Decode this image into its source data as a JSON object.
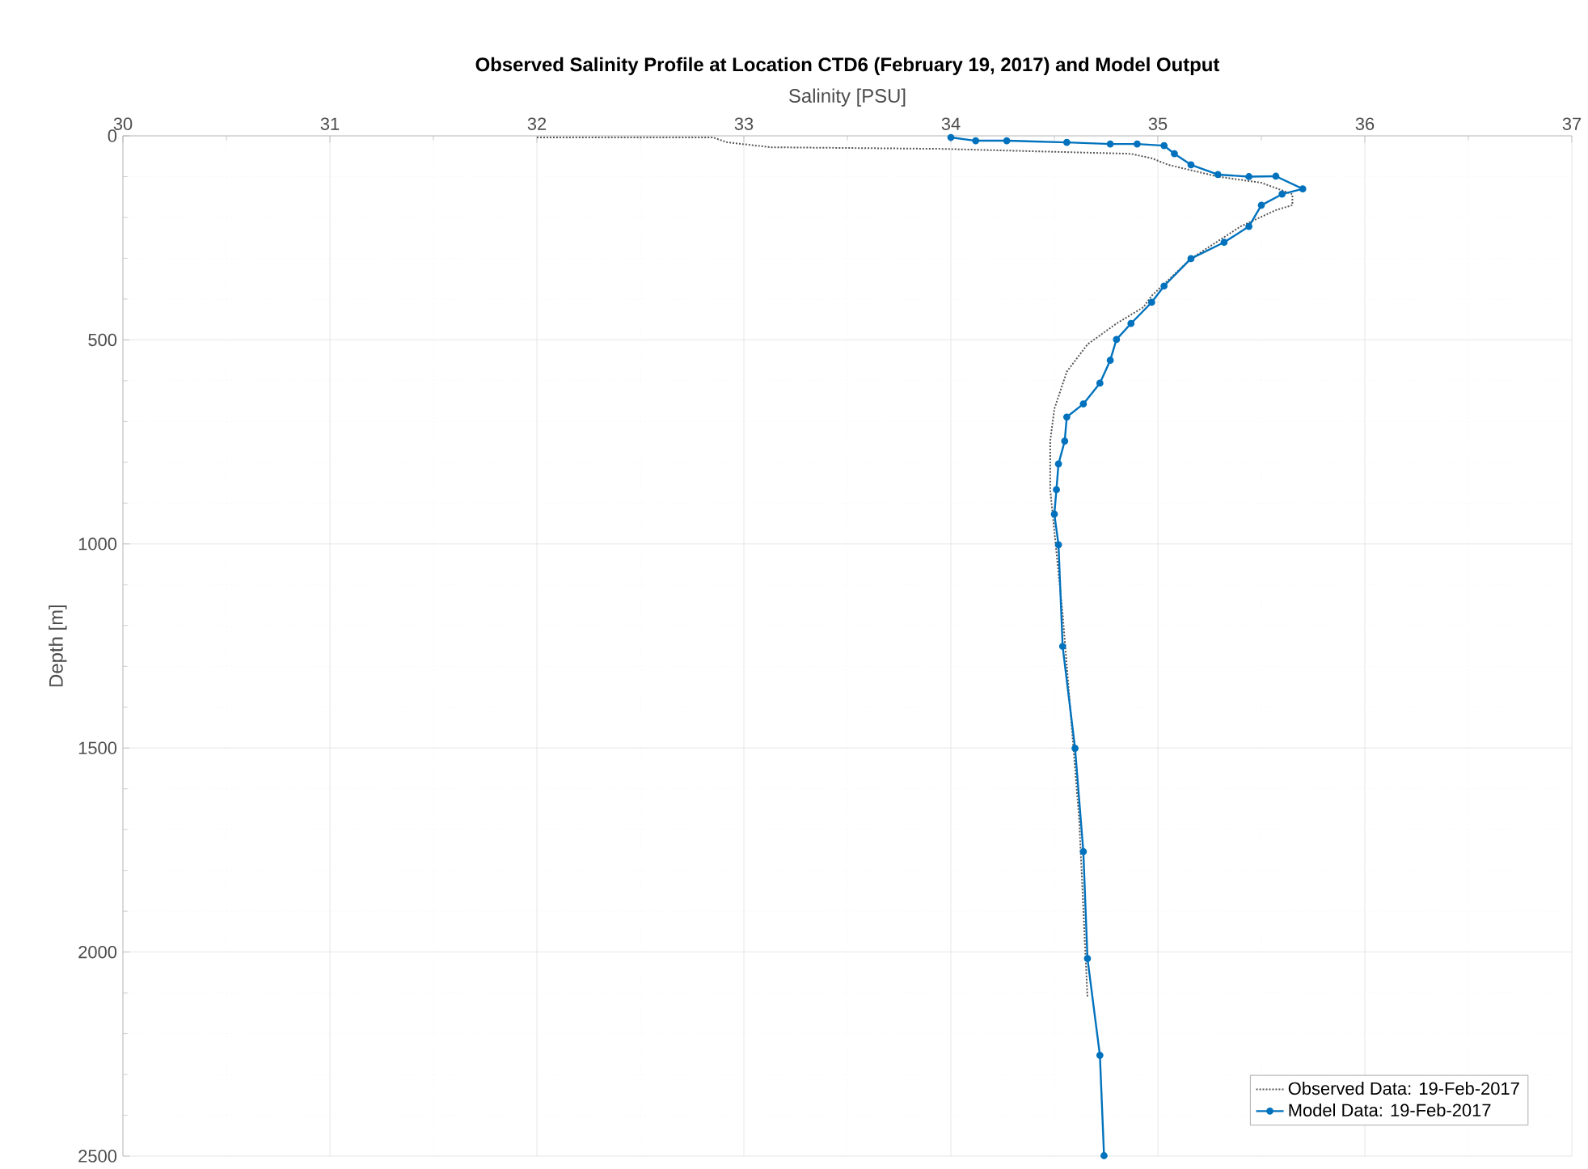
{
  "chart_data": {
    "type": "line",
    "title": "Observed Salinity Profile at Location CTD6 (February 19, 2017) and Model Output",
    "xlabel": "Salinity [PSU]",
    "ylabel": "Depth [m]",
    "xlim": [
      30,
      37
    ],
    "xticks": [
      30,
      31,
      32,
      33,
      34,
      35,
      36,
      37
    ],
    "ylim": [
      2500,
      0
    ],
    "yticks": [
      0,
      500,
      1000,
      1500,
      2000,
      2500
    ],
    "grid": true,
    "legend": "bottom right",
    "series": [
      {
        "name": "Observed Data: 19-Feb-2017",
        "color": "#555555",
        "line_style": "dotted",
        "marker": "none",
        "x": [
          32.0,
          32.85,
          32.92,
          33.13,
          33.96,
          34.87,
          34.97,
          35.05,
          35.29,
          35.5,
          35.65,
          35.65,
          35.57,
          35.4,
          35.16,
          34.97,
          34.93,
          34.8,
          34.66,
          34.56,
          34.5,
          34.48,
          34.48,
          34.54,
          34.62,
          34.66
        ],
        "values": [
          4,
          4,
          16,
          28,
          32,
          44,
          55,
          71,
          100,
          115,
          143,
          170,
          182,
          222,
          301,
          392,
          420,
          460,
          511,
          578,
          669,
          748,
          867,
          1172,
          1675,
          2111
        ]
      },
      {
        "name": "Model Data: 19-Feb-2017",
        "color": "#0072bd",
        "line_style": "solid",
        "marker": "circle",
        "x": [
          34.0,
          34.12,
          34.27,
          34.56,
          34.77,
          34.9,
          35.03,
          35.08,
          35.16,
          35.29,
          35.44,
          35.57,
          35.7,
          35.6,
          35.5,
          35.44,
          35.32,
          35.16,
          35.03,
          34.97,
          34.87,
          34.8,
          34.77,
          34.72,
          34.64,
          34.56,
          34.55,
          34.52,
          34.51,
          34.5,
          34.52,
          34.54,
          34.6,
          34.64,
          34.66,
          34.72,
          34.74
        ],
        "values": [
          4,
          12,
          12,
          16,
          20,
          20,
          24,
          44,
          71,
          95,
          100,
          99,
          130,
          143,
          170,
          222,
          261,
          301,
          368,
          408,
          460,
          499,
          550,
          606,
          657,
          689,
          748,
          804,
          867,
          927,
          1002,
          1251,
          1501,
          1754,
          2016,
          2253,
          2499
        ]
      }
    ]
  }
}
